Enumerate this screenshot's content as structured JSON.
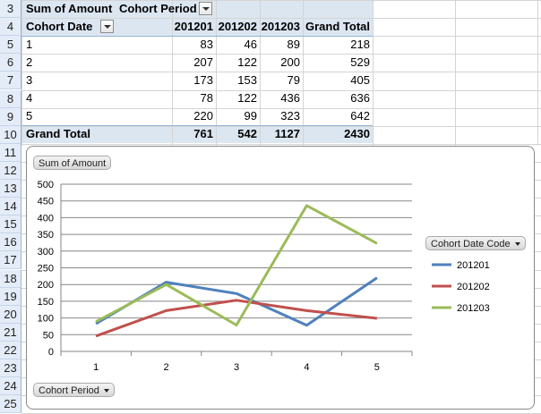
{
  "row_numbers": [
    "3",
    "4",
    "5",
    "6",
    "7",
    "8",
    "9",
    "10",
    "11",
    "12",
    "13",
    "14",
    "15",
    "16",
    "17",
    "18",
    "19",
    "20",
    "21",
    "22",
    "23",
    "24",
    "25"
  ],
  "pivot": {
    "value_field": "Sum of Amount",
    "column_field": "Cohort Period",
    "row_field": "Cohort Date",
    "columns": [
      "201201",
      "201202",
      "201203",
      "Grand Total"
    ],
    "rows": [
      {
        "label": "1",
        "values": [
          "83",
          "46",
          "89",
          "218"
        ]
      },
      {
        "label": "2",
        "values": [
          "207",
          "122",
          "200",
          "529"
        ]
      },
      {
        "label": "3",
        "values": [
          "173",
          "153",
          "79",
          "405"
        ]
      },
      {
        "label": "4",
        "values": [
          "78",
          "122",
          "436",
          "636"
        ]
      },
      {
        "label": "5",
        "values": [
          "220",
          "99",
          "323",
          "642"
        ]
      }
    ],
    "grand_total": {
      "label": "Grand Total",
      "values": [
        "761",
        "542",
        "1127",
        "2430"
      ]
    }
  },
  "chart_buttons": {
    "value_field": "Sum of Amount",
    "axis_field": "Cohort Period",
    "legend_field": "Cohort Date Code"
  },
  "chart_data": {
    "type": "line",
    "categories": [
      "1",
      "2",
      "3",
      "4",
      "5"
    ],
    "series": [
      {
        "name": "201201",
        "values": [
          83,
          207,
          173,
          78,
          220
        ],
        "color": "#4f81bd"
      },
      {
        "name": "201202",
        "values": [
          46,
          122,
          153,
          122,
          99
        ],
        "color": "#c0504d"
      },
      {
        "name": "201203",
        "values": [
          89,
          200,
          79,
          436,
          323
        ],
        "color": "#9bbb59"
      }
    ],
    "ylim": [
      0,
      500
    ],
    "yticks": [
      "0",
      "50",
      "100",
      "150",
      "200",
      "250",
      "300",
      "350",
      "400",
      "450",
      "500"
    ],
    "grid": true,
    "legend": "right"
  }
}
